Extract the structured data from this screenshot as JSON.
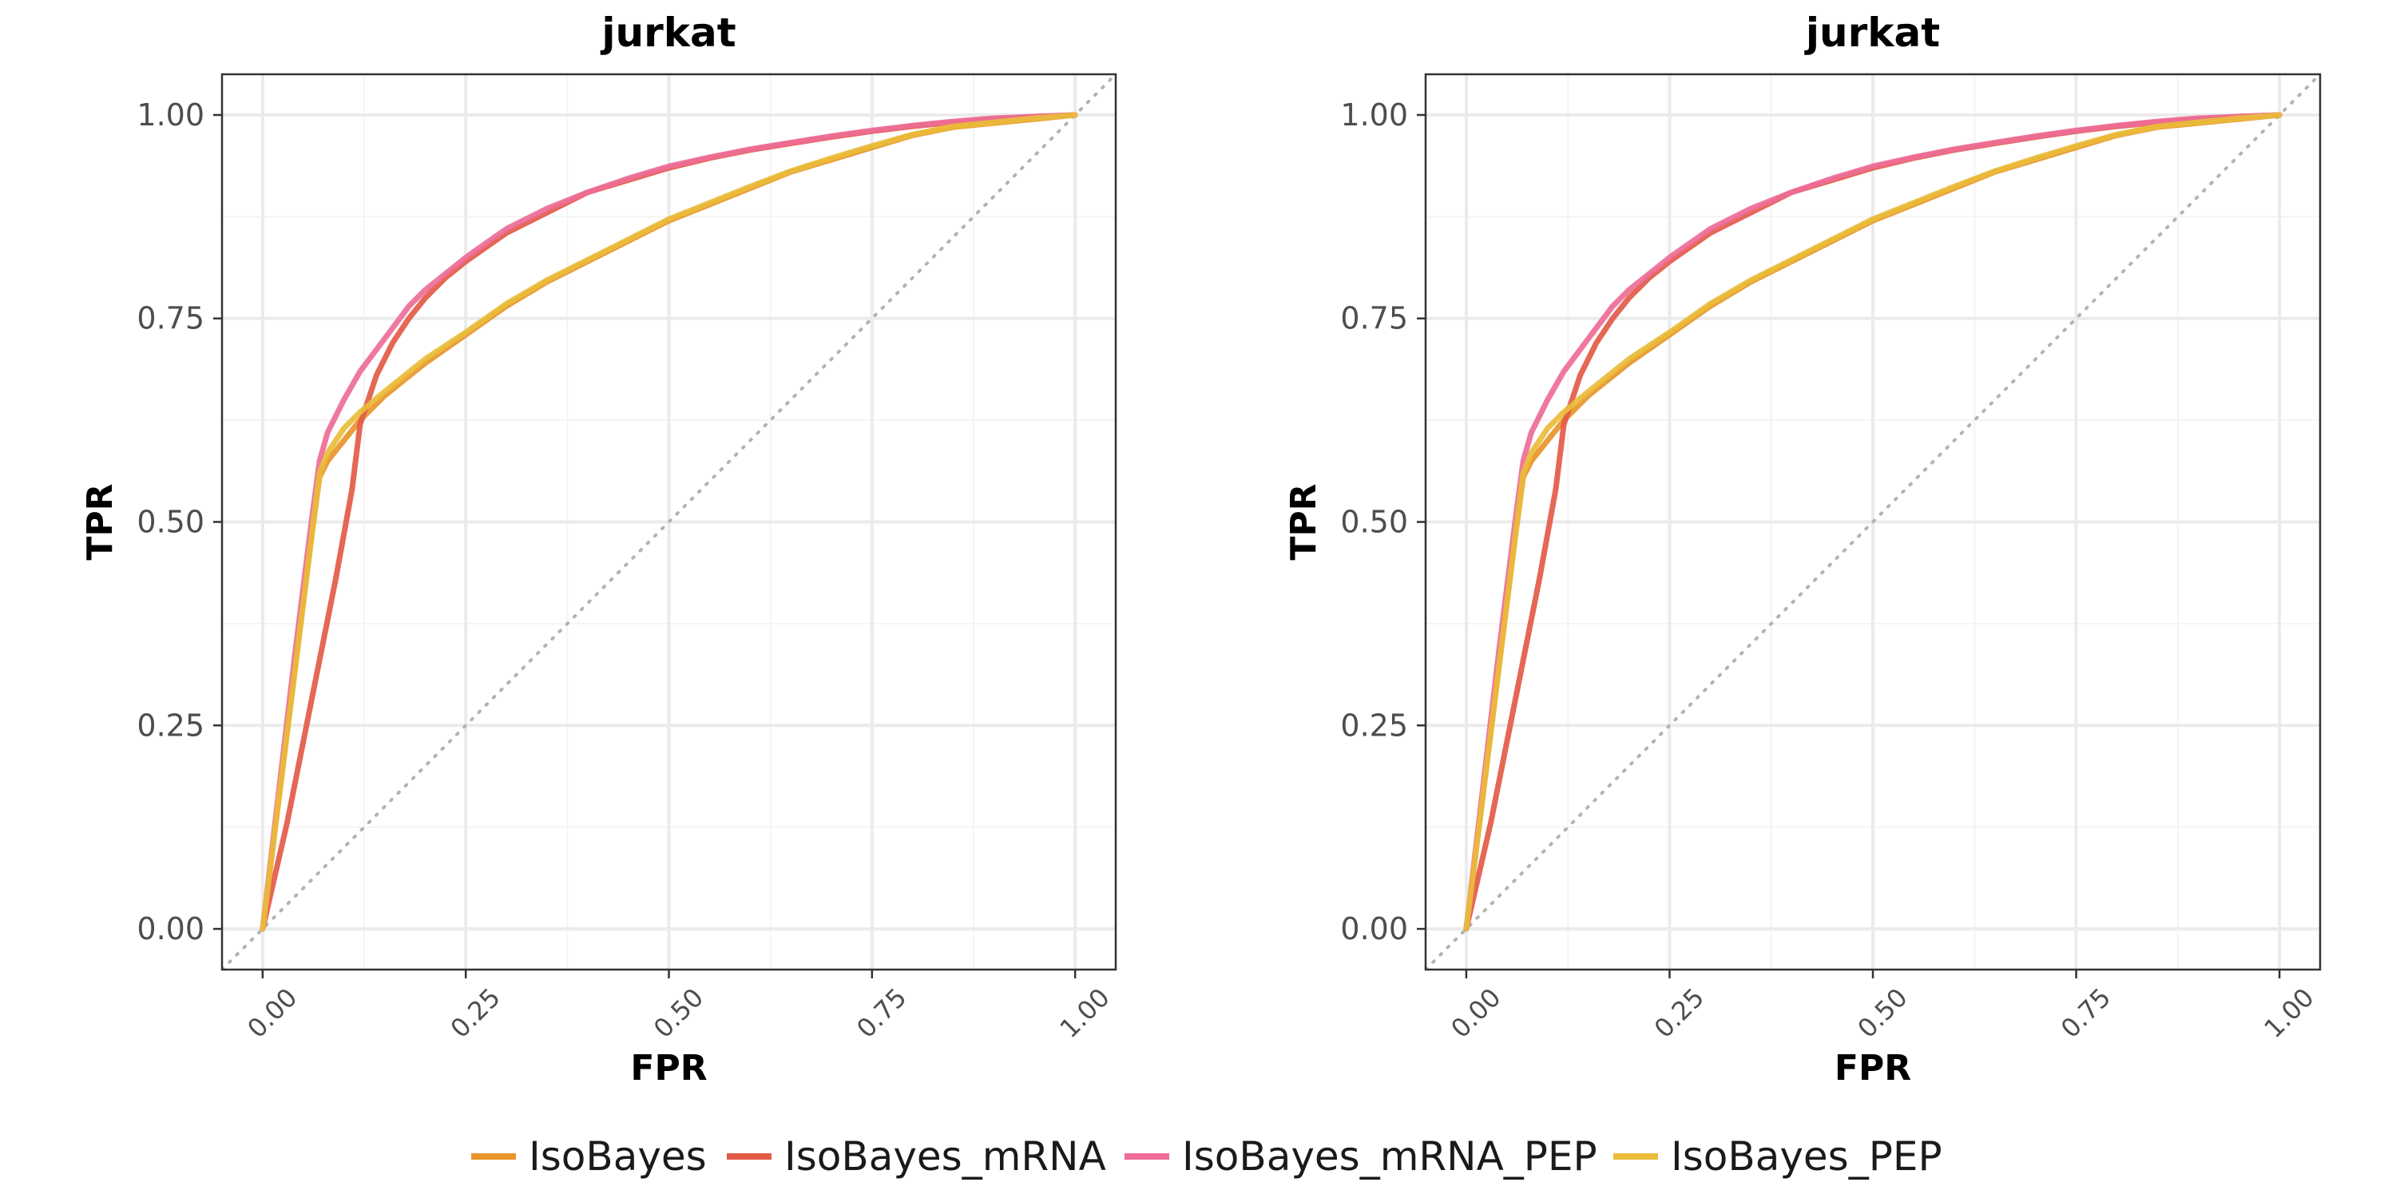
{
  "colors": {
    "IsoBayes": "#E8952A",
    "IsoBayes_mRNA": "#E35A46",
    "IsoBayes_mRNA_PEP": "#EE6C97",
    "IsoBayes_PEP": "#E9BC3A",
    "diagonal": "#b3b3b3",
    "grid_major": "#ebebeb",
    "grid_minor": "#f4f4f4",
    "panel_border": "#333333"
  },
  "legend": {
    "position": "bottom",
    "items": [
      {
        "label": "IsoBayes"
      },
      {
        "label": "IsoBayes_mRNA"
      },
      {
        "label": "IsoBayes_mRNA_PEP"
      },
      {
        "label": "IsoBayes_PEP"
      }
    ]
  },
  "chart_data": [
    {
      "type": "line",
      "title": "jurkat",
      "xlabel": "FPR",
      "ylabel": "TPR",
      "xlim": [
        -0.05,
        1.05
      ],
      "ylim": [
        -0.05,
        1.05
      ],
      "xticks": [
        "0.00",
        "0.25",
        "0.50",
        "0.75",
        "1.00"
      ],
      "yticks": [
        "0.00",
        "0.25",
        "0.50",
        "0.75",
        "1.00"
      ],
      "grid": true,
      "reference_line": "diagonal",
      "series": [
        {
          "name": "IsoBayes",
          "x": [
            0,
            0.02,
            0.04,
            0.06,
            0.07,
            0.08,
            0.1,
            0.12,
            0.15,
            0.2,
            0.25,
            0.3,
            0.35,
            0.4,
            0.45,
            0.5,
            0.55,
            0.6,
            0.65,
            0.7,
            0.75,
            0.8,
            0.85,
            0.9,
            0.95,
            1.0
          ],
          "y": [
            0,
            0.16,
            0.32,
            0.48,
            0.555,
            0.575,
            0.6,
            0.625,
            0.655,
            0.695,
            0.73,
            0.765,
            0.795,
            0.82,
            0.845,
            0.87,
            0.89,
            0.91,
            0.93,
            0.945,
            0.96,
            0.975,
            0.985,
            0.99,
            0.995,
            1.0
          ]
        },
        {
          "name": "IsoBayes_mRNA",
          "x": [
            0,
            0.03,
            0.06,
            0.09,
            0.11,
            0.12,
            0.14,
            0.16,
            0.18,
            0.2,
            0.225,
            0.25,
            0.3,
            0.35,
            0.4,
            0.45,
            0.5,
            0.55,
            0.6,
            0.65,
            0.7,
            0.75,
            0.8,
            0.85,
            0.9,
            0.95,
            1.0
          ],
          "y": [
            0,
            0.13,
            0.28,
            0.43,
            0.54,
            0.62,
            0.68,
            0.72,
            0.75,
            0.775,
            0.8,
            0.82,
            0.855,
            0.88,
            0.905,
            0.92,
            0.935,
            0.947,
            0.957,
            0.965,
            0.973,
            0.98,
            0.986,
            0.991,
            0.995,
            0.998,
            1.0
          ]
        },
        {
          "name": "IsoBayes_mRNA_PEP",
          "x": [
            0,
            0.02,
            0.04,
            0.06,
            0.07,
            0.08,
            0.1,
            0.12,
            0.15,
            0.18,
            0.2,
            0.225,
            0.25,
            0.3,
            0.35,
            0.4,
            0.45,
            0.5,
            0.55,
            0.6,
            0.65,
            0.7,
            0.75,
            0.8,
            0.85,
            0.9,
            0.95,
            1.0
          ],
          "y": [
            0,
            0.17,
            0.34,
            0.5,
            0.575,
            0.61,
            0.65,
            0.685,
            0.725,
            0.765,
            0.785,
            0.805,
            0.825,
            0.86,
            0.885,
            0.905,
            0.922,
            0.937,
            0.948,
            0.958,
            0.966,
            0.974,
            0.981,
            0.987,
            0.992,
            0.996,
            0.998,
            1.0
          ]
        },
        {
          "name": "IsoBayes_PEP",
          "x": [
            0,
            0.02,
            0.04,
            0.06,
            0.07,
            0.08,
            0.1,
            0.12,
            0.15,
            0.2,
            0.25,
            0.3,
            0.35,
            0.4,
            0.45,
            0.5,
            0.55,
            0.6,
            0.65,
            0.7,
            0.75,
            0.8,
            0.85,
            0.9,
            0.95,
            1.0
          ],
          "y": [
            0,
            0.16,
            0.32,
            0.48,
            0.56,
            0.585,
            0.615,
            0.635,
            0.66,
            0.7,
            0.733,
            0.768,
            0.797,
            0.822,
            0.847,
            0.872,
            0.892,
            0.912,
            0.931,
            0.947,
            0.962,
            0.976,
            0.986,
            0.991,
            0.996,
            1.0
          ]
        }
      ]
    },
    {
      "type": "line",
      "title": "jurkat",
      "xlabel": "FPR",
      "ylabel": "TPR",
      "xlim": [
        -0.05,
        1.05
      ],
      "ylim": [
        -0.05,
        1.05
      ],
      "xticks": [
        "0.00",
        "0.25",
        "0.50",
        "0.75",
        "1.00"
      ],
      "yticks": [
        "0.00",
        "0.25",
        "0.50",
        "0.75",
        "1.00"
      ],
      "grid": true,
      "reference_line": "diagonal",
      "series": [
        {
          "name": "IsoBayes",
          "x": [
            0,
            0.02,
            0.04,
            0.06,
            0.07,
            0.08,
            0.1,
            0.12,
            0.15,
            0.2,
            0.25,
            0.3,
            0.35,
            0.4,
            0.45,
            0.5,
            0.55,
            0.6,
            0.65,
            0.7,
            0.75,
            0.8,
            0.85,
            0.9,
            0.95,
            1.0
          ],
          "y": [
            0,
            0.16,
            0.32,
            0.48,
            0.555,
            0.575,
            0.6,
            0.625,
            0.655,
            0.695,
            0.73,
            0.765,
            0.795,
            0.82,
            0.845,
            0.87,
            0.89,
            0.91,
            0.93,
            0.945,
            0.96,
            0.975,
            0.985,
            0.99,
            0.995,
            1.0
          ]
        },
        {
          "name": "IsoBayes_mRNA",
          "x": [
            0,
            0.03,
            0.06,
            0.09,
            0.11,
            0.12,
            0.14,
            0.16,
            0.18,
            0.2,
            0.225,
            0.25,
            0.3,
            0.35,
            0.4,
            0.45,
            0.5,
            0.55,
            0.6,
            0.65,
            0.7,
            0.75,
            0.8,
            0.85,
            0.9,
            0.95,
            1.0
          ],
          "y": [
            0,
            0.13,
            0.28,
            0.43,
            0.54,
            0.62,
            0.68,
            0.72,
            0.75,
            0.775,
            0.8,
            0.82,
            0.855,
            0.88,
            0.905,
            0.92,
            0.935,
            0.947,
            0.957,
            0.965,
            0.973,
            0.98,
            0.986,
            0.991,
            0.995,
            0.998,
            1.0
          ]
        },
        {
          "name": "IsoBayes_mRNA_PEP",
          "x": [
            0,
            0.02,
            0.04,
            0.06,
            0.07,
            0.08,
            0.1,
            0.12,
            0.15,
            0.18,
            0.2,
            0.225,
            0.25,
            0.3,
            0.35,
            0.4,
            0.45,
            0.5,
            0.55,
            0.6,
            0.65,
            0.7,
            0.75,
            0.8,
            0.85,
            0.9,
            0.95,
            1.0
          ],
          "y": [
            0,
            0.17,
            0.34,
            0.5,
            0.575,
            0.61,
            0.65,
            0.685,
            0.725,
            0.765,
            0.785,
            0.805,
            0.825,
            0.86,
            0.885,
            0.905,
            0.922,
            0.937,
            0.948,
            0.958,
            0.966,
            0.974,
            0.981,
            0.987,
            0.992,
            0.996,
            0.998,
            1.0
          ]
        },
        {
          "name": "IsoBayes_PEP",
          "x": [
            0,
            0.02,
            0.04,
            0.06,
            0.07,
            0.08,
            0.1,
            0.12,
            0.15,
            0.2,
            0.25,
            0.3,
            0.35,
            0.4,
            0.45,
            0.5,
            0.55,
            0.6,
            0.65,
            0.7,
            0.75,
            0.8,
            0.85,
            0.9,
            0.95,
            1.0
          ],
          "y": [
            0,
            0.16,
            0.32,
            0.48,
            0.56,
            0.585,
            0.615,
            0.635,
            0.66,
            0.7,
            0.733,
            0.768,
            0.797,
            0.822,
            0.847,
            0.872,
            0.892,
            0.912,
            0.931,
            0.947,
            0.962,
            0.976,
            0.986,
            0.991,
            0.996,
            1.0
          ]
        }
      ]
    }
  ]
}
